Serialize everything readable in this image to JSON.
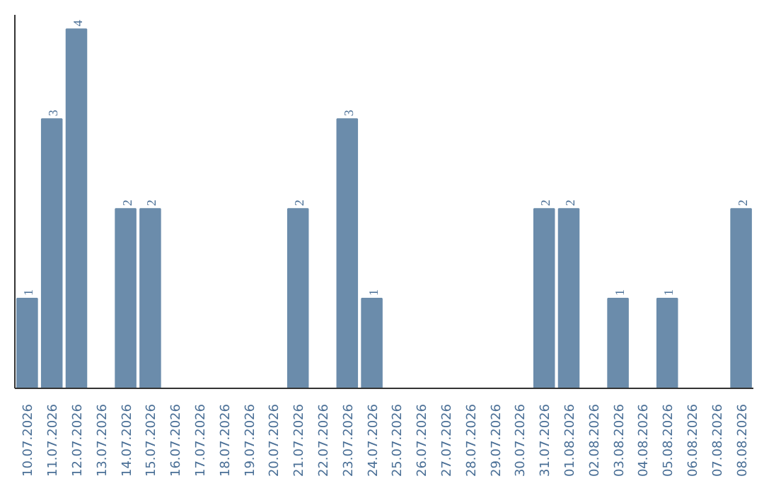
{
  "chart_data": {
    "type": "bar",
    "categories": [
      "10.07.2026",
      "11.07.2026",
      "12.07.2026",
      "13.07.2026",
      "14.07.2026",
      "15.07.2026",
      "16.07.2026",
      "17.07.2026",
      "18.07.2026",
      "19.07.2026",
      "20.07.2026",
      "21.07.2026",
      "22.07.2026",
      "23.07.2026",
      "24.07.2026",
      "25.07.2026",
      "26.07.2026",
      "27.07.2026",
      "28.07.2026",
      "29.07.2026",
      "30.07.2026",
      "31.07.2026",
      "01.08.2026",
      "02.08.2026",
      "03.08.2026",
      "04.08.2026",
      "05.08.2026",
      "06.08.2026",
      "07.08.2026",
      "08.08.2026"
    ],
    "values": [
      1,
      3,
      4,
      0,
      2,
      2,
      0,
      0,
      0,
      0,
      0,
      2,
      0,
      3,
      1,
      0,
      0,
      0,
      0,
      0,
      0,
      2,
      2,
      0,
      1,
      0,
      1,
      0,
      0,
      2
    ],
    "value_labels": [
      "1",
      "3",
      "4",
      null,
      "2",
      "2",
      null,
      null,
      null,
      null,
      null,
      "2",
      null,
      "3",
      "1",
      null,
      null,
      null,
      null,
      null,
      null,
      "2",
      "2",
      null,
      "1",
      null,
      "1",
      null,
      null,
      "2"
    ],
    "color": "#6b8cab"
  }
}
